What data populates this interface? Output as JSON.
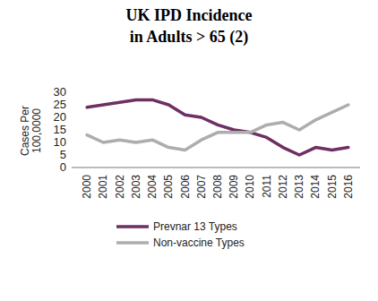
{
  "chart_data": {
    "type": "line",
    "title": "UK IPD Incidence",
    "subtitle": "in Adults > 65 (2)",
    "y_label": "Cases Per 100,0000",
    "categories": [
      "2000",
      "2001",
      "2002",
      "2003",
      "2004",
      "2005",
      "2006",
      "2007",
      "2008",
      "2009",
      "2010",
      "2011",
      "2012",
      "2013",
      "2014",
      "2015",
      "2016"
    ],
    "series": [
      {
        "name": "Prevnar 13 Types",
        "color": "#6e2f63",
        "values": [
          24,
          25,
          26,
          27,
          27,
          25,
          21,
          20,
          17,
          15,
          14,
          12,
          8,
          5,
          8,
          7,
          8
        ]
      },
      {
        "name": "Non-vaccine Types",
        "color": "#adadad",
        "values": [
          13,
          10,
          11,
          10,
          11,
          8,
          7,
          11,
          14,
          14,
          14,
          17,
          18,
          15,
          19,
          22,
          25
        ]
      }
    ],
    "ylim": [
      0,
      30
    ],
    "yticks": [
      0,
      5,
      10,
      15,
      20,
      25,
      30
    ],
    "grid": false,
    "legend": "bottom"
  }
}
